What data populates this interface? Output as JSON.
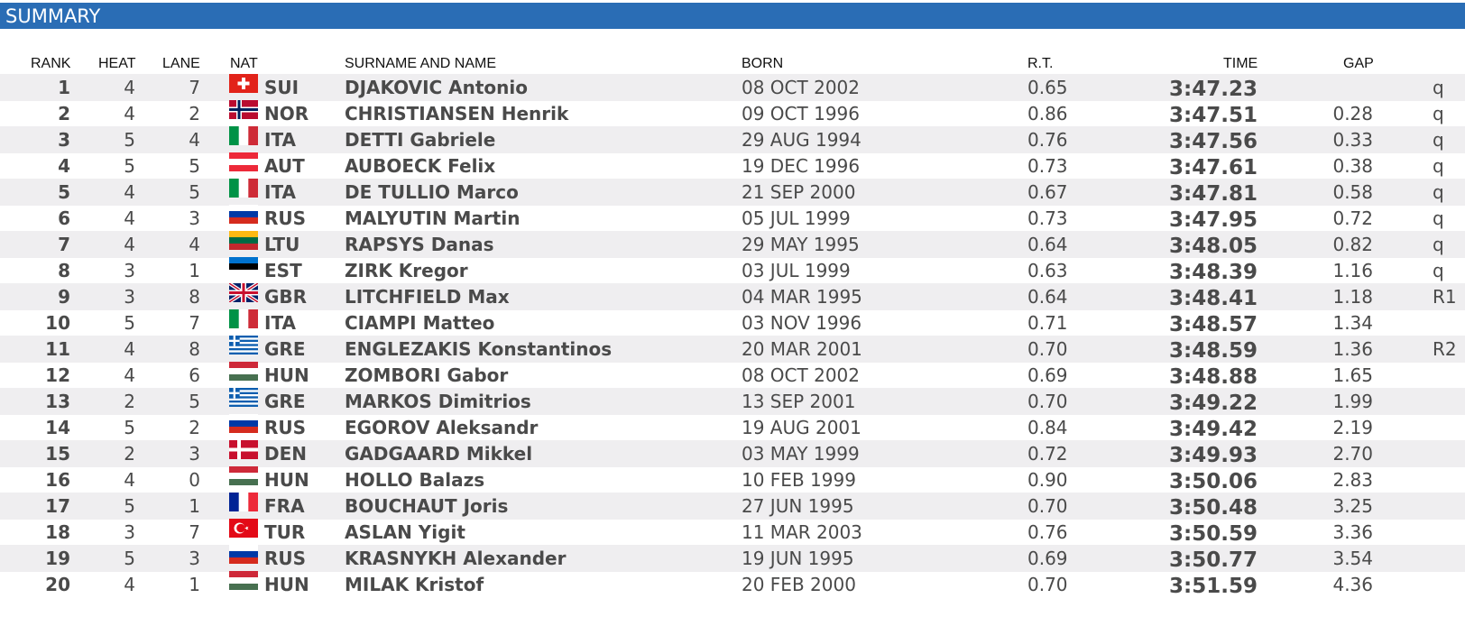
{
  "section_title": "SUMMARY",
  "columns": {
    "rank": "RANK",
    "heat": "HEAT",
    "lane": "LANE",
    "nat": "NAT",
    "name": "SURNAME AND NAME",
    "born": "BORN",
    "rt": "R.T.",
    "time": "TIME",
    "gap": "GAP"
  },
  "rows": [
    {
      "rank": "1",
      "heat": "4",
      "lane": "7",
      "flag": "flag-sui",
      "nat": "SUI",
      "name": "DJAKOVIC Antonio",
      "born": "08 OCT 2002",
      "rt": "0.65",
      "time": "3:47.23",
      "gap": "",
      "q": "q"
    },
    {
      "rank": "2",
      "heat": "4",
      "lane": "2",
      "flag": "flag-nor",
      "nat": "NOR",
      "name": "CHRISTIANSEN Henrik",
      "born": "09 OCT 1996",
      "rt": "0.86",
      "time": "3:47.51",
      "gap": "0.28",
      "q": "q"
    },
    {
      "rank": "3",
      "heat": "5",
      "lane": "4",
      "flag": "flag-ita",
      "nat": "ITA",
      "name": "DETTI Gabriele",
      "born": "29 AUG 1994",
      "rt": "0.76",
      "time": "3:47.56",
      "gap": "0.33",
      "q": "q"
    },
    {
      "rank": "4",
      "heat": "5",
      "lane": "5",
      "flag": "flag-aut",
      "nat": "AUT",
      "name": "AUBOECK Felix",
      "born": "19 DEC 1996",
      "rt": "0.73",
      "time": "3:47.61",
      "gap": "0.38",
      "q": "q"
    },
    {
      "rank": "5",
      "heat": "4",
      "lane": "5",
      "flag": "flag-ita",
      "nat": "ITA",
      "name": "DE TULLIO Marco",
      "born": "21 SEP 2000",
      "rt": "0.67",
      "time": "3:47.81",
      "gap": "0.58",
      "q": "q"
    },
    {
      "rank": "6",
      "heat": "4",
      "lane": "3",
      "flag": "flag-rus",
      "nat": "RUS",
      "name": "MALYUTIN Martin",
      "born": "05 JUL 1999",
      "rt": "0.73",
      "time": "3:47.95",
      "gap": "0.72",
      "q": "q"
    },
    {
      "rank": "7",
      "heat": "4",
      "lane": "4",
      "flag": "flag-ltu",
      "nat": "LTU",
      "name": "RAPSYS Danas",
      "born": "29 MAY 1995",
      "rt": "0.64",
      "time": "3:48.05",
      "gap": "0.82",
      "q": "q"
    },
    {
      "rank": "8",
      "heat": "3",
      "lane": "1",
      "flag": "flag-est",
      "nat": "EST",
      "name": "ZIRK Kregor",
      "born": "03 JUL 1999",
      "rt": "0.63",
      "time": "3:48.39",
      "gap": "1.16",
      "q": "q"
    },
    {
      "rank": "9",
      "heat": "3",
      "lane": "8",
      "flag": "flag-gbr",
      "nat": "GBR",
      "name": "LITCHFIELD Max",
      "born": "04 MAR 1995",
      "rt": "0.64",
      "time": "3:48.41",
      "gap": "1.18",
      "q": "R1"
    },
    {
      "rank": "10",
      "heat": "5",
      "lane": "7",
      "flag": "flag-ita",
      "nat": "ITA",
      "name": "CIAMPI Matteo",
      "born": "03 NOV 1996",
      "rt": "0.71",
      "time": "3:48.57",
      "gap": "1.34",
      "q": ""
    },
    {
      "rank": "11",
      "heat": "4",
      "lane": "8",
      "flag": "flag-gre",
      "nat": "GRE",
      "name": "ENGLEZAKIS Konstantinos",
      "born": "20 MAR 2001",
      "rt": "0.70",
      "time": "3:48.59",
      "gap": "1.36",
      "q": "R2"
    },
    {
      "rank": "12",
      "heat": "4",
      "lane": "6",
      "flag": "flag-hun",
      "nat": "HUN",
      "name": "ZOMBORI Gabor",
      "born": "08 OCT 2002",
      "rt": "0.69",
      "time": "3:48.88",
      "gap": "1.65",
      "q": ""
    },
    {
      "rank": "13",
      "heat": "2",
      "lane": "5",
      "flag": "flag-gre",
      "nat": "GRE",
      "name": "MARKOS Dimitrios",
      "born": "13 SEP 2001",
      "rt": "0.70",
      "time": "3:49.22",
      "gap": "1.99",
      "q": ""
    },
    {
      "rank": "14",
      "heat": "5",
      "lane": "2",
      "flag": "flag-rus",
      "nat": "RUS",
      "name": "EGOROV Aleksandr",
      "born": "19 AUG 2001",
      "rt": "0.84",
      "time": "3:49.42",
      "gap": "2.19",
      "q": ""
    },
    {
      "rank": "15",
      "heat": "2",
      "lane": "3",
      "flag": "flag-den",
      "nat": "DEN",
      "name": "GADGAARD Mikkel",
      "born": "03 MAY 1999",
      "rt": "0.72",
      "time": "3:49.93",
      "gap": "2.70",
      "q": ""
    },
    {
      "rank": "16",
      "heat": "4",
      "lane": "0",
      "flag": "flag-hun",
      "nat": "HUN",
      "name": "HOLLO Balazs",
      "born": "10 FEB 1999",
      "rt": "0.90",
      "time": "3:50.06",
      "gap": "2.83",
      "q": ""
    },
    {
      "rank": "17",
      "heat": "5",
      "lane": "1",
      "flag": "flag-fra",
      "nat": "FRA",
      "name": "BOUCHAUT Joris",
      "born": "27 JUN 1995",
      "rt": "0.70",
      "time": "3:50.48",
      "gap": "3.25",
      "q": ""
    },
    {
      "rank": "18",
      "heat": "3",
      "lane": "7",
      "flag": "flag-tur",
      "nat": "TUR",
      "name": "ASLAN Yigit",
      "born": "11 MAR 2003",
      "rt": "0.76",
      "time": "3:50.59",
      "gap": "3.36",
      "q": ""
    },
    {
      "rank": "19",
      "heat": "5",
      "lane": "3",
      "flag": "flag-rus",
      "nat": "RUS",
      "name": "KRASNYKH Alexander",
      "born": "19 JUN 1995",
      "rt": "0.69",
      "time": "3:50.77",
      "gap": "3.54",
      "q": ""
    },
    {
      "rank": "20",
      "heat": "4",
      "lane": "1",
      "flag": "flag-hun",
      "nat": "HUN",
      "name": "MILAK Kristof",
      "born": "20 FEB 2000",
      "rt": "0.70",
      "time": "3:51.59",
      "gap": "4.36",
      "q": ""
    }
  ]
}
